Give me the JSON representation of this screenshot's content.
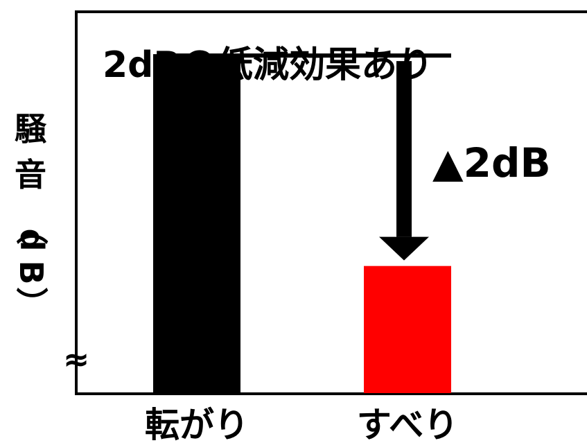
{
  "chart_data": {
    "type": "bar",
    "title": "2dBの低減効果あり",
    "ylabel": "騒音（dB）",
    "ylabel_chars": [
      "騒",
      "音",
      "（",
      "d",
      "B",
      "）"
    ],
    "axis_break_symbol": "≈",
    "categories": [
      "転がり",
      "すべり"
    ],
    "values": [
      0,
      -2
    ],
    "colors": [
      "#000000",
      "#ff0000"
    ],
    "ylim": [
      -3.2,
      0.4
    ],
    "annotation": {
      "text": "▲2dB",
      "from_value": 0,
      "to_value": -2
    }
  }
}
